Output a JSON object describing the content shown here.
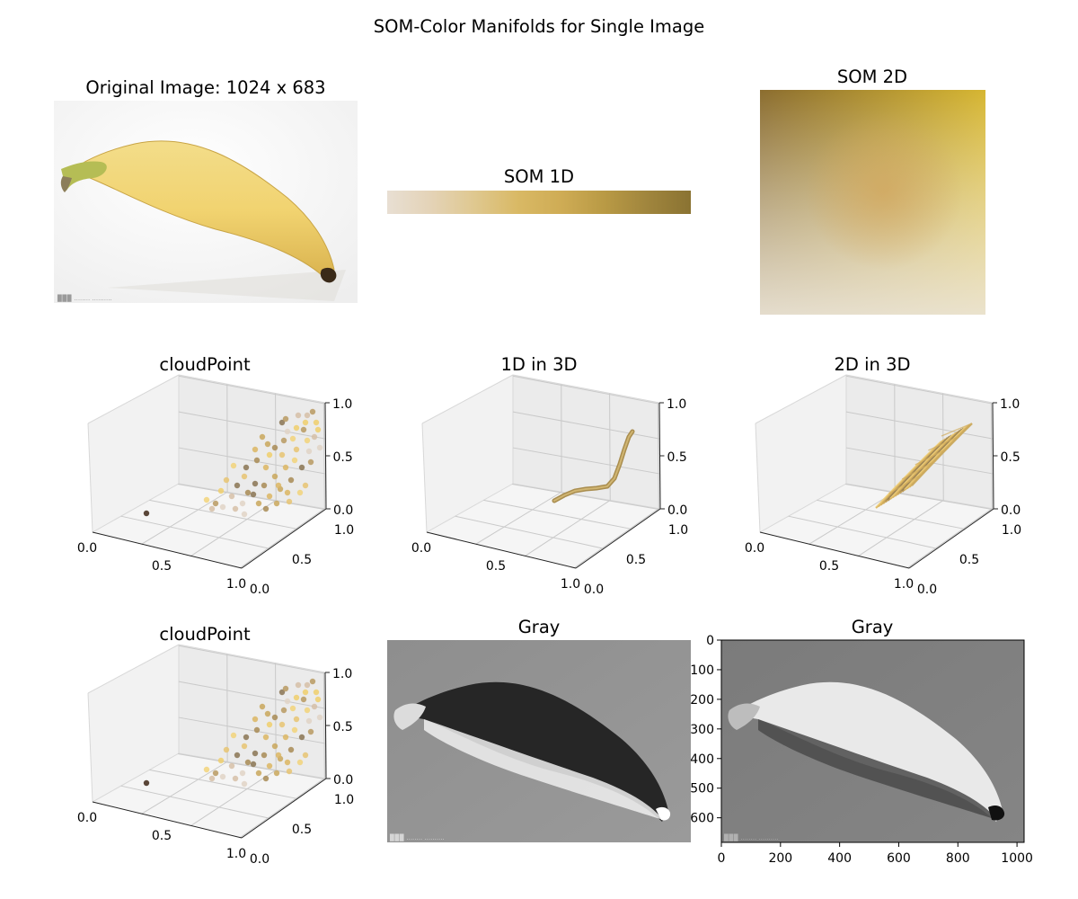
{
  "figure": {
    "suptitle": "SOM-Color Manifolds for Single Image"
  },
  "panels": {
    "original": {
      "title": "Original Image: 1024 x 683"
    },
    "som1d": {
      "title": "SOM 1D"
    },
    "som2d": {
      "title": "SOM 2D"
    },
    "cloud1": {
      "title": "cloudPoint"
    },
    "line3d": {
      "title": "1D in 3D"
    },
    "surf3d": {
      "title": "2D in 3D"
    },
    "cloud2": {
      "title": "cloudPoint"
    },
    "gray1": {
      "title": "Gray"
    },
    "gray2": {
      "title": "Gray"
    }
  },
  "chart_data": [
    {
      "type": "heatmap",
      "panel": "som1d",
      "title": "SOM 1D",
      "colors": [
        "#e8dfd3",
        "#e4d3b7",
        "#dfc890",
        "#d9b965",
        "#cfac55",
        "#b99a45",
        "#a0853d",
        "#8a7332"
      ]
    },
    {
      "type": "heatmap",
      "panel": "som2d",
      "title": "SOM 2D",
      "corner_colors": {
        "top_left": "#8b6d2f",
        "top_right": "#d6b632",
        "bottom_left": "#e7e3de",
        "bottom_right": "#e8c070"
      }
    },
    {
      "type": "scatter",
      "panel": "cloud1",
      "title": "cloudPoint",
      "axes": "3d",
      "x_ticks": [
        "0.0",
        "0.5",
        "1.0"
      ],
      "y_ticks": [
        "0.0",
        "0.5",
        "1.0"
      ],
      "z_ticks": [
        "0.0",
        "0.5",
        "1.0"
      ]
    },
    {
      "type": "line",
      "panel": "line3d",
      "title": "1D in 3D",
      "axes": "3d",
      "x_ticks": [
        "0.0",
        "0.5",
        "1.0"
      ],
      "y_ticks": [
        "0.0",
        "0.5",
        "1.0"
      ],
      "z_ticks": [
        "0.0",
        "0.5",
        "1.0"
      ]
    },
    {
      "type": "scatter",
      "panel": "surf3d",
      "title": "2D in 3D",
      "axes": "3d",
      "x_ticks": [
        "0.0",
        "0.5",
        "1.0"
      ],
      "y_ticks": [
        "0.0",
        "0.5",
        "1.0"
      ],
      "z_ticks": [
        "0.0",
        "0.5",
        "1.0"
      ]
    },
    {
      "type": "scatter",
      "panel": "cloud2",
      "title": "cloudPoint",
      "axes": "3d",
      "x_ticks": [
        "0.0",
        "0.5",
        "1.0"
      ],
      "y_ticks": [
        "0.0",
        "0.5",
        "1.0"
      ],
      "z_ticks": [
        "0.0",
        "0.5",
        "1.0"
      ]
    },
    {
      "type": "heatmap",
      "panel": "gray2",
      "title": "Gray",
      "x_ticks": [
        "0",
        "200",
        "400",
        "600",
        "800",
        "1000"
      ],
      "y_ticks": [
        "0",
        "100",
        "200",
        "300",
        "400",
        "500",
        "600"
      ],
      "xlim": [
        0,
        1024
      ],
      "ylim": [
        683,
        0
      ]
    }
  ]
}
